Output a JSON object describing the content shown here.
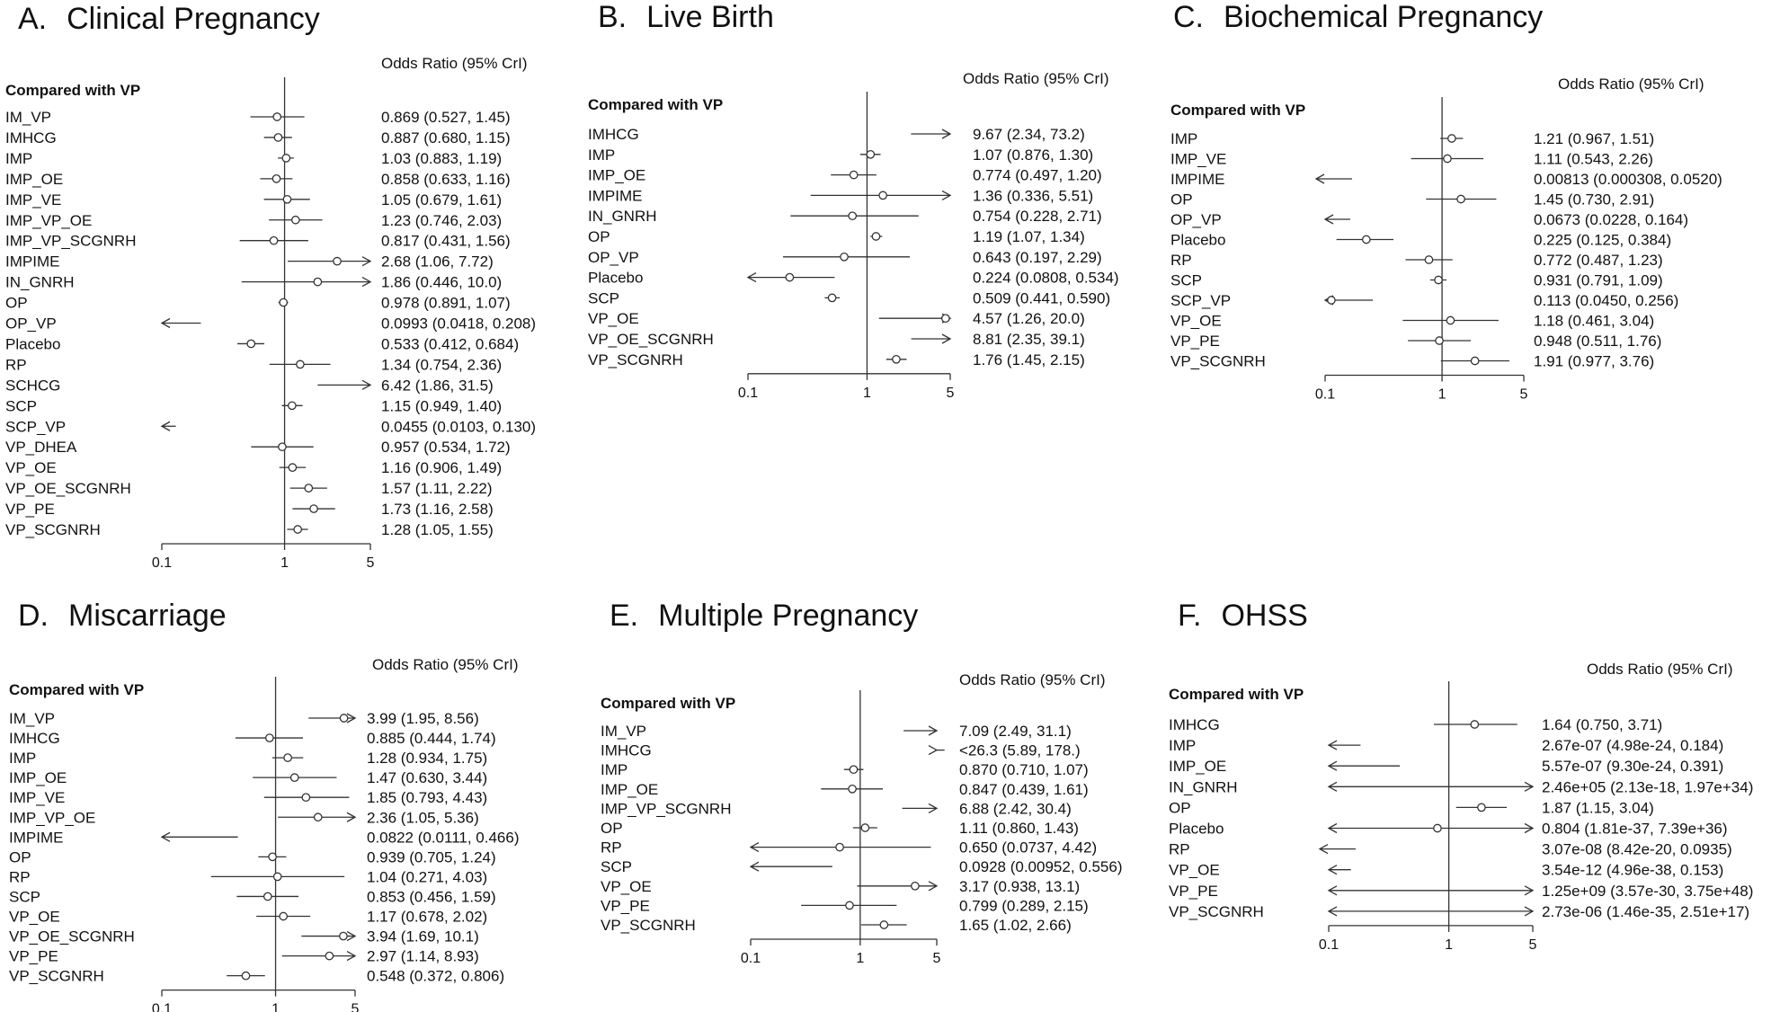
{
  "chart_data": [
    {
      "type": "forest",
      "letter": "A.",
      "title": "Clinical Pregnancy",
      "reference_label": "Compared with VP",
      "value_header": "Odds Ratio (95% CrI)",
      "x_scale": "log",
      "xlim": [
        0.1,
        5
      ],
      "ticks": [
        "0.1",
        "1",
        "5"
      ],
      "rows": [
        {
          "label": "IM_VP",
          "or": 0.869,
          "lo": 0.527,
          "hi": 1.45,
          "text": "0.869 (0.527, 1.45)"
        },
        {
          "label": "IMHCG",
          "or": 0.887,
          "lo": 0.68,
          "hi": 1.15,
          "text": "0.887 (0.680, 1.15)"
        },
        {
          "label": "IMP",
          "or": 1.03,
          "lo": 0.883,
          "hi": 1.19,
          "text": "1.03 (0.883, 1.19)"
        },
        {
          "label": "IMP_OE",
          "or": 0.858,
          "lo": 0.633,
          "hi": 1.16,
          "text": "0.858 (0.633, 1.16)"
        },
        {
          "label": "IMP_VE",
          "or": 1.05,
          "lo": 0.679,
          "hi": 1.61,
          "text": "1.05 (0.679, 1.61)"
        },
        {
          "label": "IMP_VP_OE",
          "or": 1.23,
          "lo": 0.746,
          "hi": 2.03,
          "text": "1.23 (0.746, 2.03)"
        },
        {
          "label": "IMP_VP_SCGNRH",
          "or": 0.817,
          "lo": 0.431,
          "hi": 1.56,
          "text": "0.817 (0.431, 1.56)"
        },
        {
          "label": "IMPIME",
          "or": 2.68,
          "lo": 1.06,
          "hi": 7.72,
          "text": "2.68 (1.06, 7.72)"
        },
        {
          "label": "IN_GNRH",
          "or": 1.86,
          "lo": 0.446,
          "hi": 10.0,
          "text": "1.86 (0.446, 10.0)"
        },
        {
          "label": "OP",
          "or": 0.978,
          "lo": 0.891,
          "hi": 1.07,
          "text": "0.978 (0.891, 1.07)"
        },
        {
          "label": "OP_VP",
          "or": 0.0993,
          "lo": 0.0418,
          "hi": 0.208,
          "text": "0.0993 (0.0418, 0.208)"
        },
        {
          "label": "Placebo",
          "or": 0.533,
          "lo": 0.412,
          "hi": 0.684,
          "text": "0.533 (0.412, 0.684)"
        },
        {
          "label": "RP",
          "or": 1.34,
          "lo": 0.754,
          "hi": 2.36,
          "text": "1.34 (0.754, 2.36)"
        },
        {
          "label": "SCHCG",
          "or": 6.42,
          "lo": 1.86,
          "hi": 31.5,
          "text": "6.42 (1.86, 31.5)"
        },
        {
          "label": "SCP",
          "or": 1.15,
          "lo": 0.949,
          "hi": 1.4,
          "text": "1.15 (0.949, 1.40)"
        },
        {
          "label": "SCP_VP",
          "or": 0.0455,
          "lo": 0.0103,
          "hi": 0.13,
          "text": "0.0455 (0.0103, 0.130)"
        },
        {
          "label": "VP_DHEA",
          "or": 0.957,
          "lo": 0.534,
          "hi": 1.72,
          "text": "0.957 (0.534, 1.72)"
        },
        {
          "label": "VP_OE",
          "or": 1.16,
          "lo": 0.906,
          "hi": 1.49,
          "text": "1.16 (0.906, 1.49)"
        },
        {
          "label": "VP_OE_SCGNRH",
          "or": 1.57,
          "lo": 1.11,
          "hi": 2.22,
          "text": "1.57 (1.11, 2.22)"
        },
        {
          "label": "VP_PE",
          "or": 1.73,
          "lo": 1.16,
          "hi": 2.58,
          "text": "1.73 (1.16, 2.58)"
        },
        {
          "label": "VP_SCGNRH",
          "or": 1.28,
          "lo": 1.05,
          "hi": 1.55,
          "text": "1.28 (1.05, 1.55)"
        }
      ]
    },
    {
      "type": "forest",
      "letter": "B.",
      "title": "Live Birth",
      "reference_label": "Compared with VP",
      "value_header": "Odds Ratio (95% CrI)",
      "x_scale": "log",
      "xlim": [
        0.1,
        5
      ],
      "ticks": [
        "0.1",
        "1",
        "5"
      ],
      "rows": [
        {
          "label": "IMHCG",
          "or": 9.67,
          "lo": 2.34,
          "hi": 73.2,
          "text": "9.67 (2.34, 73.2)"
        },
        {
          "label": "IMP",
          "or": 1.07,
          "lo": 0.876,
          "hi": 1.3,
          "text": "1.07 (0.876, 1.30)"
        },
        {
          "label": "IMP_OE",
          "or": 0.774,
          "lo": 0.497,
          "hi": 1.2,
          "text": "0.774 (0.497, 1.20)"
        },
        {
          "label": "IMPIME",
          "or": 1.36,
          "lo": 0.336,
          "hi": 5.51,
          "text": "1.36 (0.336, 5.51)"
        },
        {
          "label": "IN_GNRH",
          "or": 0.754,
          "lo": 0.228,
          "hi": 2.71,
          "text": "0.754 (0.228, 2.71)"
        },
        {
          "label": "OP",
          "or": 1.19,
          "lo": 1.07,
          "hi": 1.34,
          "text": "1.19 (1.07, 1.34)"
        },
        {
          "label": "OP_VP",
          "or": 0.643,
          "lo": 0.197,
          "hi": 2.29,
          "text": "0.643 (0.197, 2.29)"
        },
        {
          "label": "Placebo",
          "or": 0.224,
          "lo": 0.0808,
          "hi": 0.534,
          "text": "0.224 (0.0808, 0.534)"
        },
        {
          "label": "SCP",
          "or": 0.509,
          "lo": 0.441,
          "hi": 0.59,
          "text": "0.509 (0.441, 0.590)"
        },
        {
          "label": "VP_OE",
          "or": 4.57,
          "lo": 1.26,
          "hi": 20.0,
          "text": "4.57 (1.26, 20.0)"
        },
        {
          "label": "VP_OE_SCGNRH",
          "or": 8.81,
          "lo": 2.35,
          "hi": 39.1,
          "text": "8.81 (2.35, 39.1)"
        },
        {
          "label": "VP_SCGNRH",
          "or": 1.76,
          "lo": 1.45,
          "hi": 2.15,
          "text": "1.76 (1.45, 2.15)"
        }
      ]
    },
    {
      "type": "forest",
      "letter": "C.",
      "title": "Biochemical Pregnancy",
      "reference_label": "Compared with VP",
      "value_header": "Odds Ratio (95% CrI)",
      "x_scale": "log",
      "xlim": [
        0.1,
        5
      ],
      "ticks": [
        "0.1",
        "1",
        "5"
      ],
      "rows": [
        {
          "label": "IMP",
          "or": 1.21,
          "lo": 0.967,
          "hi": 1.51,
          "text": "1.21 (0.967, 1.51)"
        },
        {
          "label": "IMP_VE",
          "or": 1.11,
          "lo": 0.543,
          "hi": 2.26,
          "text": "1.11 (0.543, 2.26)"
        },
        {
          "label": "IMPIME",
          "or": 0.00813,
          "lo": 0.000308,
          "hi": 0.052,
          "text": "0.00813 (0.000308, 0.0520)"
        },
        {
          "label": "OP",
          "or": 1.45,
          "lo": 0.73,
          "hi": 2.91,
          "text": "1.45 (0.730, 2.91)"
        },
        {
          "label": "OP_VP",
          "or": 0.0673,
          "lo": 0.0228,
          "hi": 0.164,
          "text": "0.0673 (0.0228, 0.164)"
        },
        {
          "label": "Placebo",
          "or": 0.225,
          "lo": 0.125,
          "hi": 0.384,
          "text": "0.225 (0.125, 0.384)"
        },
        {
          "label": "RP",
          "or": 0.772,
          "lo": 0.487,
          "hi": 1.23,
          "text": "0.772 (0.487, 1.23)"
        },
        {
          "label": "SCP",
          "or": 0.931,
          "lo": 0.791,
          "hi": 1.09,
          "text": "0.931 (0.791, 1.09)"
        },
        {
          "label": "SCP_VP",
          "or": 0.113,
          "lo": 0.045,
          "hi": 0.256,
          "text": "0.113 (0.0450, 0.256)"
        },
        {
          "label": "VP_OE",
          "or": 1.18,
          "lo": 0.461,
          "hi": 3.04,
          "text": "1.18 (0.461, 3.04)"
        },
        {
          "label": "VP_PE",
          "or": 0.948,
          "lo": 0.511,
          "hi": 1.76,
          "text": "0.948 (0.511, 1.76)"
        },
        {
          "label": "VP_SCGNRH",
          "or": 1.91,
          "lo": 0.977,
          "hi": 3.76,
          "text": "1.91 (0.977, 3.76)"
        }
      ]
    },
    {
      "type": "forest",
      "letter": "D.",
      "title": "Miscarriage",
      "reference_label": "Compared with VP",
      "value_header": "Odds Ratio (95% CrI)",
      "x_scale": "log",
      "xlim": [
        0.1,
        5
      ],
      "ticks": [
        "0.1",
        "1",
        "5"
      ],
      "rows": [
        {
          "label": "IM_VP",
          "or": 3.99,
          "lo": 1.95,
          "hi": 8.56,
          "text": "3.99 (1.95, 8.56)"
        },
        {
          "label": "IMHCG",
          "or": 0.885,
          "lo": 0.444,
          "hi": 1.74,
          "text": "0.885 (0.444, 1.74)"
        },
        {
          "label": "IMP",
          "or": 1.28,
          "lo": 0.934,
          "hi": 1.75,
          "text": "1.28 (0.934, 1.75)"
        },
        {
          "label": "IMP_OE",
          "or": 1.47,
          "lo": 0.63,
          "hi": 3.44,
          "text": "1.47 (0.630, 3.44)"
        },
        {
          "label": "IMP_VE",
          "or": 1.85,
          "lo": 0.793,
          "hi": 4.43,
          "text": "1.85 (0.793, 4.43)"
        },
        {
          "label": "IMP_VP_OE",
          "or": 2.36,
          "lo": 1.05,
          "hi": 5.36,
          "text": "2.36 (1.05, 5.36)"
        },
        {
          "label": "IMPIME",
          "or": 0.0822,
          "lo": 0.0111,
          "hi": 0.466,
          "text": "0.0822 (0.0111, 0.466)"
        },
        {
          "label": "OP",
          "or": 0.939,
          "lo": 0.705,
          "hi": 1.24,
          "text": "0.939 (0.705, 1.24)"
        },
        {
          "label": "RP",
          "or": 1.04,
          "lo": 0.271,
          "hi": 4.03,
          "text": "1.04 (0.271, 4.03)"
        },
        {
          "label": "SCP",
          "or": 0.853,
          "lo": 0.456,
          "hi": 1.59,
          "text": "0.853 (0.456, 1.59)"
        },
        {
          "label": "VP_OE",
          "or": 1.17,
          "lo": 0.678,
          "hi": 2.02,
          "text": "1.17 (0.678, 2.02)"
        },
        {
          "label": "VP_OE_SCGNRH",
          "or": 3.94,
          "lo": 1.69,
          "hi": 10.1,
          "text": "3.94 (1.69, 10.1)"
        },
        {
          "label": "VP_PE",
          "or": 2.97,
          "lo": 1.14,
          "hi": 8.93,
          "text": "2.97 (1.14, 8.93)"
        },
        {
          "label": "VP_SCGNRH",
          "or": 0.548,
          "lo": 0.372,
          "hi": 0.806,
          "text": "0.548 (0.372, 0.806)"
        }
      ]
    },
    {
      "type": "forest",
      "letter": "E.",
      "title": "Multiple Pregnancy",
      "reference_label": "Compared with VP",
      "value_header": "Odds Ratio (95% CrI)",
      "x_scale": "log",
      "xlim": [
        0.1,
        5
      ],
      "ticks": [
        "0.1",
        "1",
        "5"
      ],
      "rows": [
        {
          "label": "IM_VP",
          "or": 7.09,
          "lo": 2.49,
          "hi": 31.1,
          "text": "7.09 (2.49, 31.1)"
        },
        {
          "label": "IMHCG",
          "or": 26.3,
          "lo": 5.89,
          "hi": 178,
          "text": "<26.3 (5.89, 178.)"
        },
        {
          "label": "IMP",
          "or": 0.87,
          "lo": 0.71,
          "hi": 1.07,
          "text": "0.870 (0.710, 1.07)"
        },
        {
          "label": "IMP_OE",
          "or": 0.847,
          "lo": 0.439,
          "hi": 1.61,
          "text": "0.847 (0.439, 1.61)"
        },
        {
          "label": "IMP_VP_SCGNRH",
          "or": 6.88,
          "lo": 2.42,
          "hi": 30.4,
          "text": "6.88 (2.42, 30.4)"
        },
        {
          "label": "OP",
          "or": 1.11,
          "lo": 0.86,
          "hi": 1.43,
          "text": "1.11 (0.860, 1.43)"
        },
        {
          "label": "RP",
          "or": 0.65,
          "lo": 0.0737,
          "hi": 4.42,
          "text": "0.650 (0.0737, 4.42)"
        },
        {
          "label": "SCP",
          "or": 0.0928,
          "lo": 0.00952,
          "hi": 0.556,
          "text": "0.0928 (0.00952, 0.556)"
        },
        {
          "label": "VP_OE",
          "or": 3.17,
          "lo": 0.938,
          "hi": 13.1,
          "text": "3.17 (0.938, 13.1)"
        },
        {
          "label": "VP_PE",
          "or": 0.799,
          "lo": 0.289,
          "hi": 2.15,
          "text": "0.799 (0.289, 2.15)"
        },
        {
          "label": "VP_SCGNRH",
          "or": 1.65,
          "lo": 1.02,
          "hi": 2.66,
          "text": "1.65 (1.02, 2.66)"
        }
      ]
    },
    {
      "type": "forest",
      "letter": "F.",
      "title": "OHSS",
      "reference_label": "Compared with VP",
      "value_header": "Odds Ratio (95% CrI)",
      "x_scale": "log",
      "xlim": [
        0.1,
        5
      ],
      "ticks": [
        "0.1",
        "1",
        "5"
      ],
      "rows": [
        {
          "label": "IMHCG",
          "or": 1.64,
          "lo": 0.75,
          "hi": 3.71,
          "text": "1.64 (0.750, 3.71)"
        },
        {
          "label": "IMP",
          "or": 2.67e-07,
          "lo": 4.98e-24,
          "hi": 0.184,
          "text": "2.67e-07 (4.98e-24, 0.184)"
        },
        {
          "label": "IMP_OE",
          "or": 5.57e-07,
          "lo": 9.3e-24,
          "hi": 0.391,
          "text": "5.57e-07 (9.30e-24, 0.391)"
        },
        {
          "label": "IN_GNRH",
          "or": 246000.0,
          "lo": 2.13e-18,
          "hi": 1.97e+34,
          "text": "2.46e+05 (2.13e-18, 1.97e+34)"
        },
        {
          "label": "OP",
          "or": 1.87,
          "lo": 1.15,
          "hi": 3.04,
          "text": "1.87 (1.15, 3.04)"
        },
        {
          "label": "Placebo",
          "or": 0.804,
          "lo": 1.81e-37,
          "hi": 7.39e+36,
          "text": "0.804 (1.81e-37, 7.39e+36)"
        },
        {
          "label": "RP",
          "or": 3.07e-08,
          "lo": 8.42e-20,
          "hi": 0.0935,
          "text": "3.07e-08 (8.42e-20, 0.0935)"
        },
        {
          "label": "VP_OE",
          "or": 3.54e-12,
          "lo": 4.96e-38,
          "hi": 0.153,
          "text": "3.54e-12 (4.96e-38, 0.153)"
        },
        {
          "label": "VP_PE",
          "or": 1250000000.0,
          "lo": 3.57e-30,
          "hi": 3.75e+48,
          "text": "1.25e+09 (3.57e-30, 3.75e+48)"
        },
        {
          "label": "VP_SCGNRH",
          "or": 2.73e-06,
          "lo": 1.46e-35,
          "hi": 2.51e+17,
          "text": "2.73e-06 (1.46e-35, 2.51e+17)"
        }
      ]
    }
  ]
}
